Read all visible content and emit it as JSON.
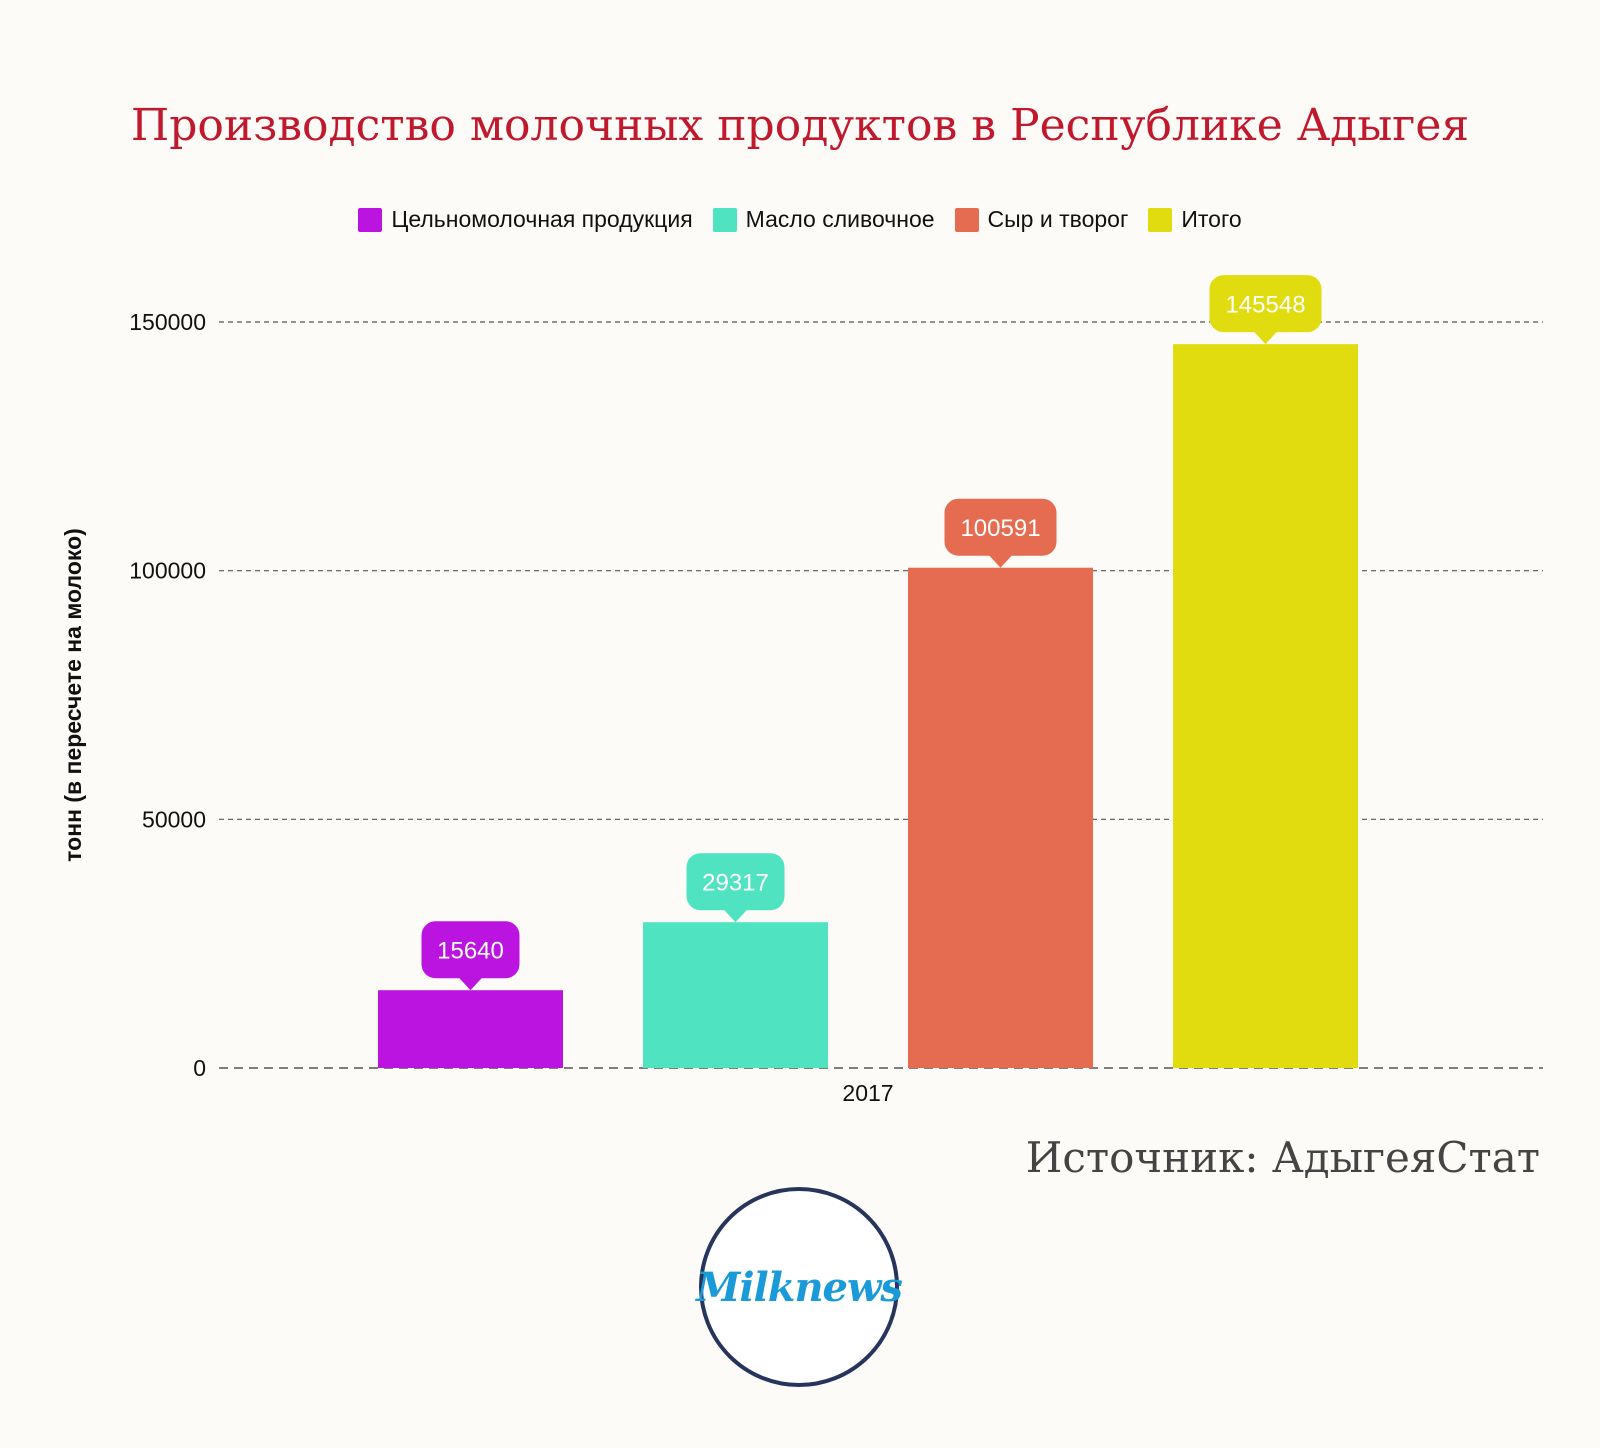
{
  "chart_data": {
    "type": "bar",
    "title": "Производство молочных продуктов в Республике Адыгея",
    "ylabel": "тонн (в пересчете на молоко)",
    "xlabel": "",
    "categories": [
      "2017"
    ],
    "series": [
      {
        "name": "Цельномолочная продукция",
        "values": [
          15640
        ],
        "color": "#bb14e0"
      },
      {
        "name": "Масло сливочное",
        "values": [
          29317
        ],
        "color": "#50e3c2"
      },
      {
        "name": "Сыр и творог",
        "values": [
          100591
        ],
        "color": "#e56c50"
      },
      {
        "name": "Итого",
        "values": [
          145548
        ],
        "color": "#e1dc0f"
      }
    ],
    "ylim": [
      0,
      150000
    ],
    "yticks": [
      0,
      50000,
      100000,
      150000
    ],
    "grid": true,
    "legend_position": "top"
  },
  "source": "Источник: АдыгеяСтат",
  "logo_text": "Milknews"
}
